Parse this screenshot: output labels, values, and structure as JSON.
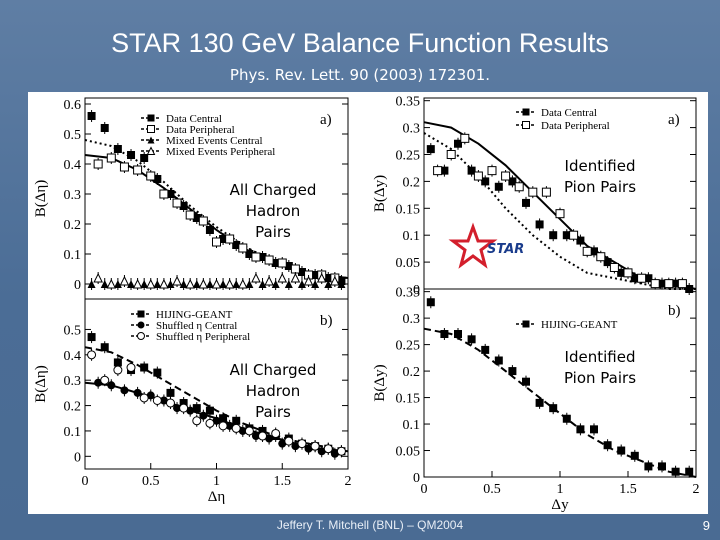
{
  "slide": {
    "title": "STAR 130 GeV Balance Function Results",
    "subtitle": "Phys. Rev. Lett. 90 (2003) 172301.",
    "footer": "Jeffery T. Mitchell (BNL) – QM2004",
    "page_number": "9",
    "colors": {
      "background": "#4f6f98",
      "text": "#ffffff",
      "plot_bg": "#ffffff",
      "star_logo": "#d31f2c",
      "star_text": "#1a3c8c"
    }
  },
  "annotations": {
    "charged_top": [
      "All Charged",
      "Hadron",
      "Pairs"
    ],
    "charged_bottom": [
      "All Charged",
      "Hadron",
      "Pairs"
    ],
    "pion_top": [
      "Identified",
      "Pion  Pairs"
    ],
    "pion_bottom": [
      "Identified",
      "Pion  Pairs"
    ],
    "logo_text": "STAR"
  },
  "chart_data": [
    {
      "id": "eta-a",
      "type": "scatter",
      "panel_label": "a)",
      "xlabel": "",
      "ylabel": "B(Δη)",
      "xlim": [
        0,
        2
      ],
      "ylim": [
        -0.05,
        0.62
      ],
      "xticks": [],
      "yticks": [
        0,
        0.1,
        0.2,
        0.3,
        0.4,
        0.5,
        0.6
      ],
      "ytick_labels": [
        "0",
        "0.1",
        "0.2",
        "0.3",
        "0.4",
        "0.5",
        "0.6"
      ],
      "series": [
        {
          "name": "Data Central",
          "marker": "square-filled",
          "x": [
            0.05,
            0.15,
            0.25,
            0.35,
            0.45,
            0.55,
            0.65,
            0.75,
            0.85,
            0.95,
            1.05,
            1.15,
            1.25,
            1.35,
            1.45,
            1.55,
            1.65,
            1.75,
            1.85,
            1.95
          ],
          "y": [
            0.56,
            0.52,
            0.45,
            0.43,
            0.42,
            0.35,
            0.3,
            0.26,
            0.22,
            0.18,
            0.15,
            0.13,
            0.1,
            0.09,
            0.07,
            0.06,
            0.04,
            0.03,
            0.02,
            0.01
          ]
        },
        {
          "name": "Data Peripheral",
          "marker": "square-open",
          "x": [
            0.1,
            0.2,
            0.3,
            0.4,
            0.5,
            0.6,
            0.7,
            0.8,
            0.9,
            1.0,
            1.1,
            1.2,
            1.3,
            1.4,
            1.5,
            1.6,
            1.7,
            1.8,
            1.9
          ],
          "y": [
            0.4,
            0.42,
            0.39,
            0.38,
            0.36,
            0.3,
            0.27,
            0.23,
            0.21,
            0.14,
            0.15,
            0.12,
            0.09,
            0.08,
            0.07,
            0.05,
            0.03,
            0.03,
            0.02
          ]
        },
        {
          "name": "Mixed Events Central",
          "marker": "triangle-filled",
          "x": [
            0.05,
            0.15,
            0.25,
            0.35,
            0.45,
            0.55,
            0.65,
            0.75,
            0.85,
            0.95,
            1.05,
            1.15,
            1.25,
            1.35,
            1.45,
            1.55,
            1.65,
            1.75,
            1.85,
            1.95
          ],
          "y": [
            0.0,
            0.0,
            0.0,
            0.0,
            0.0,
            0.0,
            0.0,
            0.0,
            0.0,
            0.0,
            0.0,
            0.0,
            0.0,
            0.0,
            0.0,
            0.0,
            0.0,
            0.0,
            0.0,
            0.0
          ]
        },
        {
          "name": "Mixed Events Peripheral",
          "marker": "triangle-open",
          "x": [
            0.1,
            0.2,
            0.3,
            0.4,
            0.5,
            0.6,
            0.7,
            0.8,
            0.9,
            1.0,
            1.1,
            1.2,
            1.3,
            1.4,
            1.5,
            1.6,
            1.7,
            1.8,
            1.9
          ],
          "y": [
            0.02,
            0.0,
            0.01,
            0.0,
            0.0,
            0.0,
            0.01,
            0.0,
            0.0,
            0.0,
            0.0,
            0.0,
            0.02,
            0.01,
            0.02,
            0.02,
            0.01,
            0.02,
            0.01
          ]
        }
      ],
      "curves": [
        {
          "name": "fit-central",
          "style": "solid",
          "x": [
            0,
            0.2,
            0.4,
            0.6,
            0.8,
            1.0,
            1.2,
            1.4,
            1.6,
            1.8,
            2.0
          ],
          "y": [
            0.43,
            0.42,
            0.38,
            0.32,
            0.25,
            0.18,
            0.12,
            0.08,
            0.05,
            0.03,
            0.02
          ]
        },
        {
          "name": "fit-peripheral",
          "style": "dotted",
          "x": [
            0,
            0.2,
            0.4,
            0.6,
            0.8,
            1.0,
            1.2,
            1.4,
            1.6,
            1.8,
            2.0
          ],
          "y": [
            0.48,
            0.46,
            0.41,
            0.34,
            0.26,
            0.19,
            0.13,
            0.08,
            0.05,
            0.03,
            0.02
          ]
        }
      ]
    },
    {
      "id": "eta-b",
      "type": "scatter",
      "panel_label": "b)",
      "xlabel": "Δη",
      "ylabel": "B(Δη)",
      "xlim": [
        0,
        2
      ],
      "ylim": [
        -0.05,
        0.62
      ],
      "xticks": [
        0,
        0.5,
        1,
        1.5,
        2
      ],
      "xtick_labels": [
        "0",
        "0.5",
        "1",
        "1.5",
        "2"
      ],
      "yticks": [
        0,
        0.1,
        0.2,
        0.3,
        0.4,
        0.5
      ],
      "ytick_labels": [
        "0",
        "0.1",
        "0.2",
        "0.3",
        "0.4",
        "0.5"
      ],
      "series": [
        {
          "name": "HIJING-GEANT",
          "marker": "square-filled",
          "x": [
            0.05,
            0.15,
            0.25,
            0.35,
            0.45,
            0.55,
            0.65,
            0.75,
            0.85,
            0.95,
            1.05,
            1.15,
            1.25,
            1.35,
            1.45,
            1.55,
            1.65,
            1.75,
            1.85,
            1.95
          ],
          "y": [
            0.47,
            0.43,
            0.37,
            0.34,
            0.35,
            0.33,
            0.25,
            0.21,
            0.19,
            0.18,
            0.15,
            0.14,
            0.11,
            0.1,
            0.08,
            0.07,
            0.05,
            0.04,
            0.03,
            0.02
          ]
        },
        {
          "name": "Shuffled η Central",
          "marker": "circle-filled",
          "x": [
            0.1,
            0.2,
            0.3,
            0.4,
            0.5,
            0.6,
            0.7,
            0.8,
            0.9,
            1.0,
            1.1,
            1.2,
            1.3,
            1.4,
            1.5,
            1.6,
            1.7,
            1.8,
            1.9
          ],
          "y": [
            0.29,
            0.28,
            0.26,
            0.25,
            0.24,
            0.22,
            0.19,
            0.18,
            0.16,
            0.14,
            0.12,
            0.1,
            0.08,
            0.07,
            0.05,
            0.04,
            0.03,
            0.02,
            0.01
          ]
        },
        {
          "name": "Shuffled η Peripheral",
          "marker": "circle-open",
          "x": [
            0.05,
            0.15,
            0.25,
            0.35,
            0.45,
            0.55,
            0.65,
            0.75,
            0.85,
            0.95,
            1.05,
            1.15,
            1.25,
            1.35,
            1.45,
            1.55,
            1.65,
            1.75,
            1.85,
            1.95
          ],
          "y": [
            0.4,
            0.3,
            0.34,
            0.35,
            0.23,
            0.22,
            0.21,
            0.19,
            0.14,
            0.13,
            0.12,
            0.11,
            0.1,
            0.08,
            0.09,
            0.06,
            0.05,
            0.04,
            0.03,
            0.02
          ]
        }
      ],
      "curves": [
        {
          "name": "fit-hijing",
          "style": "dashed",
          "x": [
            0,
            0.2,
            0.4,
            0.6,
            0.8,
            1.0,
            1.2,
            1.4,
            1.6,
            1.8,
            2.0
          ],
          "y": [
            0.43,
            0.41,
            0.36,
            0.3,
            0.24,
            0.18,
            0.13,
            0.09,
            0.06,
            0.04,
            0.02
          ]
        },
        {
          "name": "fit-shuffled",
          "style": "solid",
          "x": [
            0,
            0.2,
            0.4,
            0.6,
            0.8,
            1.0,
            1.2,
            1.4,
            1.6,
            1.8,
            2.0
          ],
          "y": [
            0.29,
            0.28,
            0.25,
            0.22,
            0.18,
            0.15,
            0.11,
            0.08,
            0.05,
            0.03,
            0.02
          ]
        }
      ]
    },
    {
      "id": "y-a",
      "type": "scatter",
      "panel_label": "a)",
      "xlabel": "",
      "ylabel": "B(Δy)",
      "xlim": [
        0,
        2
      ],
      "ylim": [
        0,
        0.355
      ],
      "xticks": [],
      "yticks": [
        0,
        0.05,
        0.1,
        0.15,
        0.2,
        0.25,
        0.3,
        0.35
      ],
      "ytick_labels": [
        "0",
        "0.05",
        "0.1",
        "0.15",
        "0.2",
        "0.25",
        "0.3",
        "0.35"
      ],
      "series": [
        {
          "name": "Data Central",
          "marker": "square-filled",
          "x": [
            0.05,
            0.15,
            0.25,
            0.35,
            0.45,
            0.55,
            0.65,
            0.75,
            0.85,
            0.95,
            1.05,
            1.15,
            1.25,
            1.35,
            1.45,
            1.55,
            1.65,
            1.75,
            1.85,
            1.95
          ],
          "y": [
            0.26,
            0.22,
            0.27,
            0.22,
            0.2,
            0.19,
            0.2,
            0.16,
            0.12,
            0.1,
            0.1,
            0.09,
            0.07,
            0.05,
            0.03,
            0.02,
            0.02,
            0.01,
            0.01,
            0.0
          ]
        },
        {
          "name": "Data Peripheral",
          "marker": "square-open",
          "x": [
            0.1,
            0.2,
            0.3,
            0.4,
            0.5,
            0.6,
            0.7,
            0.8,
            0.9,
            1.0,
            1.1,
            1.2,
            1.3,
            1.4,
            1.5,
            1.6,
            1.7,
            1.8,
            1.9
          ],
          "y": [
            0.22,
            0.25,
            0.28,
            0.21,
            0.22,
            0.21,
            0.19,
            0.18,
            0.18,
            0.14,
            0.1,
            0.07,
            0.06,
            0.04,
            0.03,
            0.02,
            0.01,
            0.01,
            0.01
          ]
        }
      ],
      "curves": [
        {
          "name": "fit-central",
          "style": "solid",
          "x": [
            0,
            0.2,
            0.4,
            0.6,
            0.8,
            1.0,
            1.2,
            1.4,
            1.6,
            1.8,
            2.0
          ],
          "y": [
            0.31,
            0.3,
            0.27,
            0.23,
            0.18,
            0.13,
            0.08,
            0.05,
            0.02,
            0.01,
            0.0
          ]
        },
        {
          "name": "fit-peripheral",
          "style": "dotted",
          "x": [
            0,
            0.2,
            0.4,
            0.6,
            0.8,
            1.0,
            1.2,
            1.4,
            1.6,
            1.8,
            2.0
          ],
          "y": [
            0.29,
            0.26,
            0.21,
            0.15,
            0.1,
            0.06,
            0.03,
            0.02,
            0.01,
            0.0,
            0.0
          ]
        }
      ]
    },
    {
      "id": "y-b",
      "type": "scatter",
      "panel_label": "b)",
      "xlabel": "Δy",
      "ylabel": "B(Δy)",
      "xlim": [
        0,
        2
      ],
      "ylim": [
        0,
        0.355
      ],
      "xticks": [
        0,
        0.5,
        1,
        1.5,
        2
      ],
      "xtick_labels": [
        "0",
        "0.5",
        "1",
        "1.5",
        "2"
      ],
      "yticks": [
        0,
        0.05,
        0.1,
        0.15,
        0.2,
        0.25,
        0.3,
        0.35
      ],
      "ytick_labels": [
        "0",
        "0.05",
        "0.1",
        "0.15",
        "0.2",
        "0.25",
        "0.3",
        "0.35"
      ],
      "series": [
        {
          "name": "HIJING-GEANT",
          "marker": "square-filled",
          "x": [
            0.05,
            0.15,
            0.25,
            0.35,
            0.45,
            0.55,
            0.65,
            0.75,
            0.85,
            0.95,
            1.05,
            1.15,
            1.25,
            1.35,
            1.45,
            1.55,
            1.65,
            1.75,
            1.85,
            1.95
          ],
          "y": [
            0.33,
            0.27,
            0.27,
            0.26,
            0.24,
            0.22,
            0.2,
            0.18,
            0.14,
            0.13,
            0.11,
            0.09,
            0.09,
            0.06,
            0.05,
            0.04,
            0.02,
            0.02,
            0.01,
            0.01
          ]
        }
      ],
      "curves": [
        {
          "name": "fit-hijing",
          "style": "dashed",
          "x": [
            0,
            0.2,
            0.4,
            0.6,
            0.8,
            1.0,
            1.2,
            1.4,
            1.6,
            1.8,
            2.0
          ],
          "y": [
            0.28,
            0.27,
            0.24,
            0.2,
            0.16,
            0.12,
            0.08,
            0.05,
            0.03,
            0.01,
            0.0
          ]
        }
      ]
    }
  ],
  "legends": {
    "eta-a": [
      "Data Central",
      "Data Peripheral",
      "Mixed Events Central",
      "Mixed Events Peripheral"
    ],
    "eta-b": [
      "HIJING-GEANT",
      "Shuffled η Central",
      "Shuffled η Peripheral"
    ],
    "y-a": [
      "Data Central",
      "Data Peripheral"
    ],
    "y-b": [
      "HIJING-GEANT"
    ]
  }
}
